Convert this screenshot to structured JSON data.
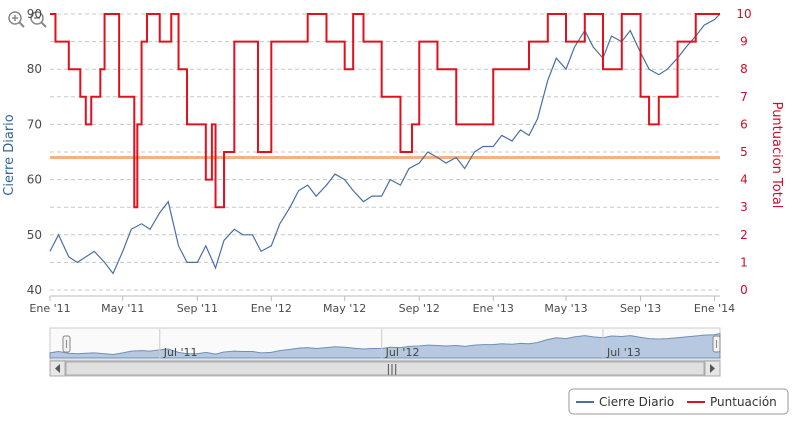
{
  "zoom": {
    "zoom_in_icon": "magnifier-plus-icon",
    "zoom_out_icon": "magnifier-minus-icon"
  },
  "chart_data": {
    "type": "line",
    "x_tick_labels": [
      "Ene '11",
      "May '11",
      "Sep '11",
      "Ene '12",
      "May '12",
      "Sep '12",
      "Ene '13",
      "May '13",
      "Sep '13",
      "Ene '14"
    ],
    "y_left": {
      "label": "Cierre Diario",
      "ticks": [
        "40",
        "50",
        "60",
        "70",
        "80",
        "90"
      ],
      "range": [
        40,
        90
      ]
    },
    "y_right": {
      "label": "Puntuacion Total",
      "ticks": [
        "0",
        "1",
        "2",
        "3",
        "4",
        "5",
        "6",
        "7",
        "8",
        "9",
        "10"
      ],
      "range": [
        0,
        10
      ]
    },
    "grid": "dashed horizontal",
    "legend_position": "bottom-right",
    "reference_line": {
      "axis": "right",
      "value": 4.8,
      "color": "#f4b183"
    },
    "series": [
      {
        "name": "Cierre Diario",
        "axis": "left",
        "color": "#4a6fa5",
        "points": [
          [
            "2011-01-01",
            47
          ],
          [
            "2011-01-15",
            50
          ],
          [
            "2011-02-01",
            46
          ],
          [
            "2011-02-15",
            45
          ],
          [
            "2011-03-01",
            46
          ],
          [
            "2011-03-15",
            47
          ],
          [
            "2011-04-01",
            45
          ],
          [
            "2011-04-15",
            43
          ],
          [
            "2011-05-01",
            47
          ],
          [
            "2011-05-15",
            51
          ],
          [
            "2011-06-01",
            52
          ],
          [
            "2011-06-15",
            51
          ],
          [
            "2011-07-01",
            54
          ],
          [
            "2011-07-15",
            56
          ],
          [
            "2011-08-01",
            48
          ],
          [
            "2011-08-15",
            45
          ],
          [
            "2011-09-01",
            45
          ],
          [
            "2011-09-15",
            48
          ],
          [
            "2011-10-01",
            44
          ],
          [
            "2011-10-15",
            49
          ],
          [
            "2011-11-01",
            51
          ],
          [
            "2011-11-15",
            50
          ],
          [
            "2011-12-01",
            50
          ],
          [
            "2011-12-15",
            47
          ],
          [
            "2012-01-01",
            48
          ],
          [
            "2012-01-15",
            52
          ],
          [
            "2012-02-01",
            55
          ],
          [
            "2012-02-15",
            58
          ],
          [
            "2012-03-01",
            59
          ],
          [
            "2012-03-15",
            57
          ],
          [
            "2012-04-01",
            59
          ],
          [
            "2012-04-15",
            61
          ],
          [
            "2012-05-01",
            60
          ],
          [
            "2012-05-15",
            58
          ],
          [
            "2012-06-01",
            56
          ],
          [
            "2012-06-15",
            57
          ],
          [
            "2012-07-01",
            57
          ],
          [
            "2012-07-15",
            60
          ],
          [
            "2012-08-01",
            59
          ],
          [
            "2012-08-15",
            62
          ],
          [
            "2012-09-01",
            63
          ],
          [
            "2012-09-15",
            65
          ],
          [
            "2012-10-01",
            64
          ],
          [
            "2012-10-15",
            63
          ],
          [
            "2012-11-01",
            64
          ],
          [
            "2012-11-15",
            62
          ],
          [
            "2012-12-01",
            65
          ],
          [
            "2012-12-15",
            66
          ],
          [
            "2013-01-01",
            66
          ],
          [
            "2013-01-15",
            68
          ],
          [
            "2013-02-01",
            67
          ],
          [
            "2013-02-15",
            69
          ],
          [
            "2013-03-01",
            68
          ],
          [
            "2013-03-15",
            71
          ],
          [
            "2013-04-01",
            78
          ],
          [
            "2013-04-15",
            82
          ],
          [
            "2013-05-01",
            80
          ],
          [
            "2013-05-15",
            84
          ],
          [
            "2013-06-01",
            87
          ],
          [
            "2013-06-15",
            84
          ],
          [
            "2013-07-01",
            82
          ],
          [
            "2013-07-15",
            86
          ],
          [
            "2013-08-01",
            85
          ],
          [
            "2013-08-15",
            87
          ],
          [
            "2013-09-01",
            83
          ],
          [
            "2013-09-15",
            80
          ],
          [
            "2013-10-01",
            79
          ],
          [
            "2013-10-15",
            80
          ],
          [
            "2013-11-01",
            82
          ],
          [
            "2013-11-15",
            84
          ],
          [
            "2013-12-01",
            86
          ],
          [
            "2013-12-15",
            88
          ],
          [
            "2014-01-01",
            89
          ],
          [
            "2014-01-10",
            92
          ]
        ]
      },
      {
        "name": "Puntuación",
        "axis": "right",
        "color": "#e0101f",
        "step": true,
        "points": [
          [
            "2011-01-01",
            10
          ],
          [
            "2011-01-10",
            9
          ],
          [
            "2011-02-01",
            8
          ],
          [
            "2011-02-20",
            7
          ],
          [
            "2011-03-01",
            6
          ],
          [
            "2011-03-10",
            7
          ],
          [
            "2011-03-25",
            8
          ],
          [
            "2011-04-01",
            10
          ],
          [
            "2011-04-25",
            7
          ],
          [
            "2011-05-20",
            3
          ],
          [
            "2011-05-25",
            6
          ],
          [
            "2011-06-01",
            9
          ],
          [
            "2011-06-10",
            10
          ],
          [
            "2011-07-01",
            9
          ],
          [
            "2011-07-20",
            10
          ],
          [
            "2011-08-01",
            8
          ],
          [
            "2011-08-15",
            6
          ],
          [
            "2011-09-01",
            6
          ],
          [
            "2011-09-15",
            4
          ],
          [
            "2011-09-25",
            6
          ],
          [
            "2011-10-01",
            3
          ],
          [
            "2011-10-15",
            5
          ],
          [
            "2011-11-01",
            9
          ],
          [
            "2011-12-10",
            5
          ],
          [
            "2012-01-01",
            9
          ],
          [
            "2012-02-01",
            9
          ],
          [
            "2012-03-01",
            10
          ],
          [
            "2012-04-01",
            9
          ],
          [
            "2012-05-01",
            8
          ],
          [
            "2012-05-15",
            10
          ],
          [
            "2012-06-01",
            9
          ],
          [
            "2012-07-01",
            7
          ],
          [
            "2012-08-01",
            5
          ],
          [
            "2012-08-20",
            6
          ],
          [
            "2012-09-01",
            9
          ],
          [
            "2012-10-01",
            8
          ],
          [
            "2012-11-01",
            6
          ],
          [
            "2012-12-01",
            6
          ],
          [
            "2013-01-01",
            8
          ],
          [
            "2013-02-01",
            8
          ],
          [
            "2013-03-01",
            9
          ],
          [
            "2013-04-01",
            10
          ],
          [
            "2013-05-01",
            9
          ],
          [
            "2013-06-01",
            10
          ],
          [
            "2013-07-01",
            8
          ],
          [
            "2013-08-01",
            10
          ],
          [
            "2013-09-01",
            7
          ],
          [
            "2013-09-15",
            6
          ],
          [
            "2013-10-01",
            7
          ],
          [
            "2013-11-01",
            9
          ],
          [
            "2013-12-01",
            10
          ],
          [
            "2014-01-10",
            10
          ]
        ]
      }
    ]
  },
  "navigator": {
    "labels": [
      "Jul '11",
      "Jul '12",
      "Jul '13"
    ],
    "grip": "|||"
  },
  "legend": {
    "items": [
      {
        "label": "Cierre Diario",
        "color": "#4a6fa5"
      },
      {
        "label": "Puntuación",
        "color": "#e0101f"
      }
    ]
  }
}
